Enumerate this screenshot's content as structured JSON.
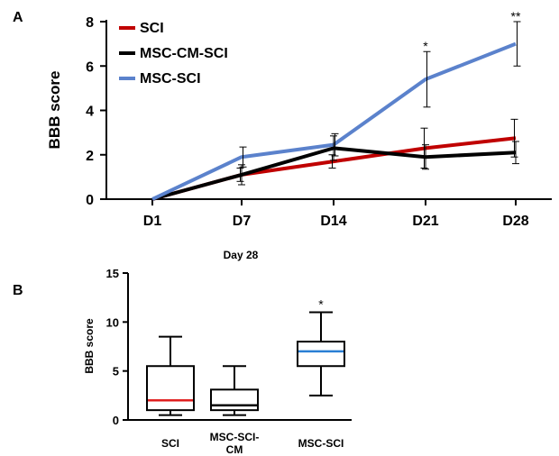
{
  "panel_a_label": "A",
  "panel_b_label": "B",
  "chart_data": [
    {
      "type": "line",
      "title": "",
      "xlabel": "",
      "ylabel": "BBB score",
      "ylim": [
        0,
        8
      ],
      "yticks": [
        "0",
        "2",
        "4",
        "6",
        "8"
      ],
      "categories": [
        "D1",
        "D7",
        "D14",
        "D21",
        "D28"
      ],
      "legend_position": "top-left",
      "series": [
        {
          "name": "SCI",
          "color": "#c00000",
          "values": [
            0,
            1.1,
            1.7,
            2.3,
            2.75
          ],
          "errors": [
            0,
            0.3,
            0.3,
            0.9,
            0.85
          ]
        },
        {
          "name": "MSC-CM-SCI",
          "color": "#000000",
          "values": [
            0,
            1.1,
            2.3,
            1.9,
            2.1
          ],
          "errors": [
            0,
            0.45,
            0.55,
            0.55,
            0.5
          ]
        },
        {
          "name": "MSC-SCI",
          "color": "#5b82cc",
          "values": [
            0,
            1.9,
            2.45,
            5.4,
            7.0
          ],
          "errors": [
            0,
            0.45,
            0.5,
            1.25,
            1.0
          ]
        }
      ],
      "annotations": [
        {
          "category": "D21",
          "text": "*"
        },
        {
          "category": "D28",
          "text": "**"
        }
      ]
    },
    {
      "type": "box",
      "title": "Day 28",
      "xlabel": "",
      "ylabel": "BBB score",
      "ylim": [
        0,
        15
      ],
      "yticks": [
        "0",
        "5",
        "10",
        "15"
      ],
      "categories": [
        "SCI",
        "MSC-SCI-CM",
        "MSC-SCI"
      ],
      "boxes": [
        {
          "min": 0.5,
          "q1": 1.0,
          "median": 2.0,
          "q3": 5.5,
          "max": 8.5,
          "median_color": "#e02020"
        },
        {
          "min": 0.5,
          "q1": 1.0,
          "median": 1.5,
          "q3": 3.1,
          "max": 5.5,
          "median_color": "#000000"
        },
        {
          "min": 2.5,
          "q1": 5.5,
          "median": 7.0,
          "q3": 8.0,
          "max": 11.0,
          "median_color": "#2a7fd4"
        }
      ],
      "annotations": [
        {
          "category": "MSC-SCI",
          "text": "*"
        }
      ]
    }
  ]
}
